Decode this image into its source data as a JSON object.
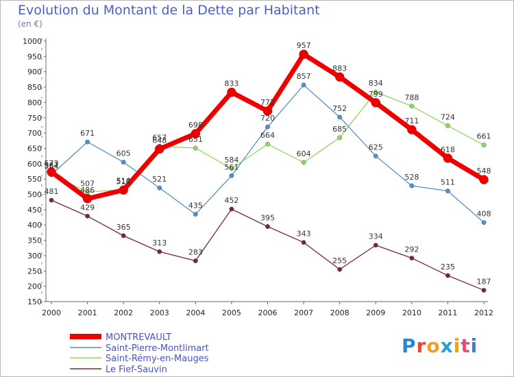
{
  "title": "Evolution du Montant de la Dette par Habitant",
  "subtitle": "(en €)",
  "brand": {
    "text": "Proxiti",
    "letter_colors": [
      "#2a86d8",
      "#e8462a",
      "#f0a020",
      "#27a0d8",
      "#f0a020",
      "#e84a80",
      "#2a86d8"
    ]
  },
  "chart_data": {
    "type": "line",
    "x": [
      "2000",
      "2001",
      "2002",
      "2003",
      "2004",
      "2005",
      "2006",
      "2007",
      "2008",
      "2009",
      "2010",
      "2011",
      "2012"
    ],
    "ylim": [
      150,
      1000
    ],
    "yticks": [
      150,
      200,
      250,
      300,
      350,
      400,
      450,
      500,
      550,
      600,
      650,
      700,
      750,
      800,
      850,
      900,
      950,
      1000
    ],
    "grid": false,
    "legend": "bottom-left",
    "series": [
      {
        "name": "MONTREVAULT",
        "color": "#ee0000",
        "values": [
          573,
          486,
          514,
          648,
          698,
          833,
          772,
          957,
          883,
          799,
          711,
          618,
          548
        ]
      },
      {
        "name": "Saint-Pierre-Montlimart",
        "color": "#5590c8",
        "values": [
          564,
          671,
          605,
          521,
          435,
          561,
          720,
          857,
          752,
          625,
          528,
          511,
          408
        ]
      },
      {
        "name": "Saint-Rémy-en-Mauges",
        "color": "#8fd860",
        "values": [
          567,
          507,
          516,
          657,
          651,
          584,
          664,
          604,
          685,
          834,
          788,
          724,
          661
        ]
      },
      {
        "name": "Le Fief-Sauvin",
        "color": "#7a2a2a",
        "values": [
          481,
          429,
          365,
          313,
          283,
          452,
          395,
          343,
          255,
          334,
          292,
          235,
          187
        ]
      }
    ]
  }
}
